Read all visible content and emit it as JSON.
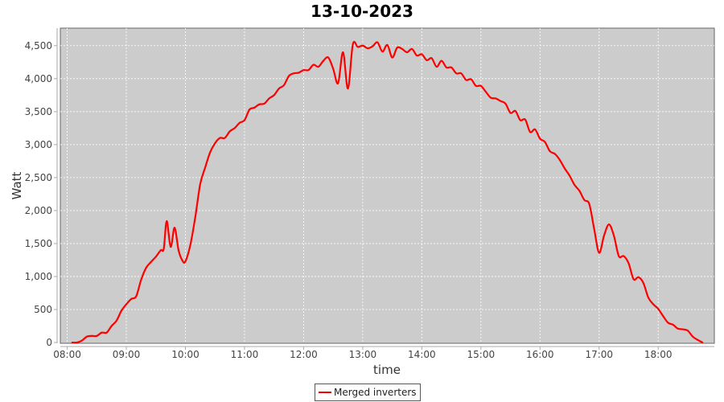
{
  "chart_data": {
    "type": "line",
    "title": "13-10-2023",
    "xlabel": "time",
    "ylabel": "Watt",
    "xlim": [
      "07:53",
      "18:57"
    ],
    "ylim": [
      0,
      4800
    ],
    "x_ticks": [
      "08:00",
      "09:00",
      "10:00",
      "11:00",
      "12:00",
      "13:00",
      "14:00",
      "15:00",
      "16:00",
      "17:00",
      "18:00"
    ],
    "y_ticks": [
      0,
      500,
      1000,
      1500,
      2000,
      2500,
      3000,
      3500,
      4000,
      4500
    ],
    "y_tick_labels": [
      "0",
      "500",
      "1,000",
      "1,500",
      "2,000",
      "2,500",
      "3,000",
      "3,500",
      "4,000",
      "4,500"
    ],
    "grid": true,
    "legend_position": "bottom",
    "colors": {
      "plot_background": "#cccccc",
      "series": "#ff0000",
      "grid": "#ffffff"
    },
    "series": [
      {
        "name": "Merged inverters",
        "x": [
          "08:05",
          "08:10",
          "08:15",
          "08:20",
          "08:25",
          "08:30",
          "08:35",
          "08:40",
          "08:45",
          "08:50",
          "08:55",
          "09:00",
          "09:05",
          "09:10",
          "09:15",
          "09:20",
          "09:25",
          "09:30",
          "09:35",
          "09:38",
          "09:41",
          "09:45",
          "09:49",
          "09:53",
          "09:57",
          "10:00",
          "10:05",
          "10:10",
          "10:15",
          "10:20",
          "10:25",
          "10:30",
          "10:35",
          "10:40",
          "10:45",
          "10:50",
          "10:55",
          "11:00",
          "11:05",
          "11:10",
          "11:15",
          "11:20",
          "11:25",
          "11:30",
          "11:35",
          "11:40",
          "11:45",
          "11:50",
          "11:55",
          "12:00",
          "12:05",
          "12:10",
          "12:15",
          "12:20",
          "12:25",
          "12:30",
          "12:35",
          "12:40",
          "12:45",
          "12:50",
          "12:55",
          "13:00",
          "13:05",
          "13:10",
          "13:15",
          "13:20",
          "13:25",
          "13:30",
          "13:35",
          "13:40",
          "13:45",
          "13:50",
          "13:55",
          "14:00",
          "14:05",
          "14:10",
          "14:15",
          "14:20",
          "14:25",
          "14:30",
          "14:35",
          "14:40",
          "14:45",
          "14:50",
          "14:55",
          "15:00",
          "15:05",
          "15:10",
          "15:15",
          "15:20",
          "15:25",
          "15:30",
          "15:35",
          "15:40",
          "15:45",
          "15:50",
          "15:55",
          "16:00",
          "16:05",
          "16:10",
          "16:15",
          "16:20",
          "16:25",
          "16:30",
          "16:35",
          "16:40",
          "16:45",
          "16:50",
          "16:55",
          "17:00",
          "17:05",
          "17:10",
          "17:15",
          "17:20",
          "17:25",
          "17:30",
          "17:35",
          "17:40",
          "17:45",
          "17:50",
          "17:55",
          "18:00",
          "18:05",
          "18:10",
          "18:15",
          "18:20",
          "18:25",
          "18:30",
          "18:35",
          "18:40",
          "18:45"
        ],
        "values": [
          0,
          0,
          30,
          90,
          100,
          100,
          150,
          150,
          250,
          330,
          480,
          580,
          660,
          700,
          950,
          1130,
          1220,
          1300,
          1400,
          1420,
          1840,
          1450,
          1740,
          1400,
          1240,
          1230,
          1480,
          1900,
          2400,
          2650,
          2880,
          3020,
          3100,
          3100,
          3200,
          3250,
          3330,
          3370,
          3530,
          3560,
          3610,
          3620,
          3700,
          3750,
          3850,
          3900,
          4040,
          4080,
          4090,
          4130,
          4130,
          4210,
          4180,
          4270,
          4320,
          4150,
          3930,
          4400,
          3850,
          4520,
          4480,
          4500,
          4460,
          4490,
          4550,
          4410,
          4510,
          4320,
          4470,
          4450,
          4400,
          4450,
          4350,
          4370,
          4280,
          4310,
          4180,
          4270,
          4170,
          4170,
          4080,
          4080,
          3980,
          3990,
          3890,
          3890,
          3800,
          3710,
          3700,
          3660,
          3620,
          3480,
          3510,
          3370,
          3380,
          3190,
          3230,
          3090,
          3040,
          2900,
          2860,
          2770,
          2640,
          2530,
          2390,
          2300,
          2160,
          2100,
          1720,
          1360,
          1620,
          1790,
          1620,
          1310,
          1310,
          1200,
          960,
          990,
          900,
          680,
          580,
          510,
          400,
          300,
          270,
          210,
          200,
          180,
          90,
          40,
          0
        ]
      }
    ]
  }
}
